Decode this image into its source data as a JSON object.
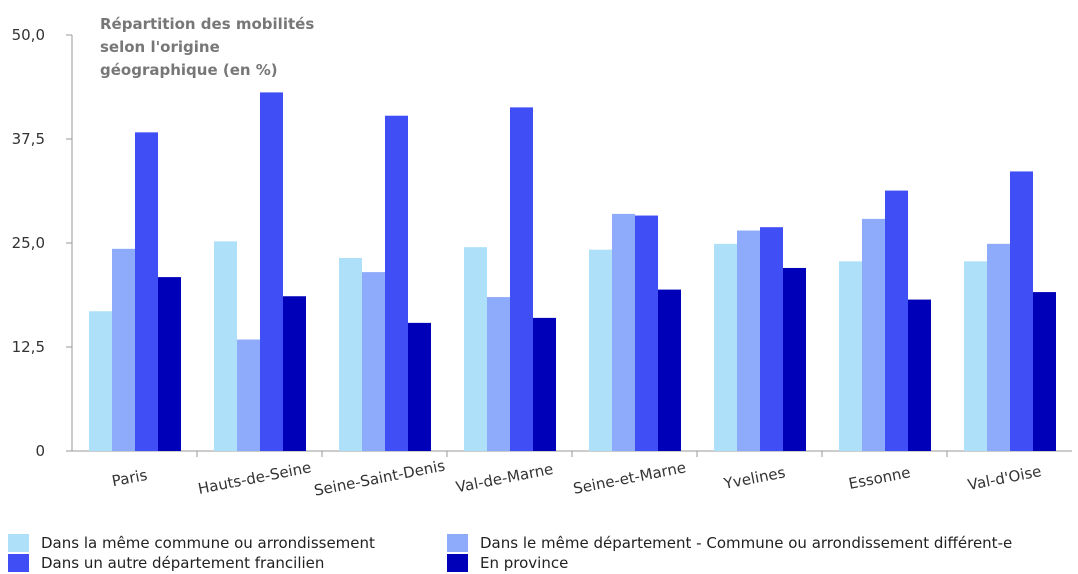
{
  "chart_data": {
    "type": "bar",
    "title_lines": [
      "Répartition des mobilités",
      "selon l'origine",
      "géographique (en %)"
    ],
    "categories": [
      "Paris",
      "Hauts-de-Seine",
      "Seine-Saint-Denis",
      "Val-de-Marne",
      "Seine-et-Marne",
      "Yvelines",
      "Essonne",
      "Val-d'Oise"
    ],
    "ylim": [
      0,
      50
    ],
    "yticks": [
      0,
      12.5,
      25,
      37.5,
      50
    ],
    "ytick_labels": [
      "0",
      "12,5",
      "25,0",
      "37,5",
      "50,0"
    ],
    "grid": false,
    "legend_position": "bottom",
    "series": [
      {
        "name": "Dans la même commune ou arrondissement",
        "color": "#aee0fa",
        "values": [
          16.8,
          25.2,
          23.2,
          24.5,
          24.2,
          24.9,
          22.8,
          22.8
        ]
      },
      {
        "name": "Dans le même département - Commune ou arrondissement différent-e",
        "color": "#8eaafa",
        "values": [
          24.3,
          13.4,
          21.5,
          18.5,
          28.5,
          26.5,
          27.9,
          24.9
        ]
      },
      {
        "name": "Dans un autre département francilien",
        "color": "#3f4ff5",
        "values": [
          38.3,
          43.1,
          40.3,
          41.3,
          28.3,
          26.9,
          31.3,
          33.6
        ]
      },
      {
        "name": "En province",
        "color": "#0000b8",
        "values": [
          20.9,
          18.6,
          15.4,
          16.0,
          19.4,
          22.0,
          18.2,
          19.1
        ]
      }
    ]
  }
}
